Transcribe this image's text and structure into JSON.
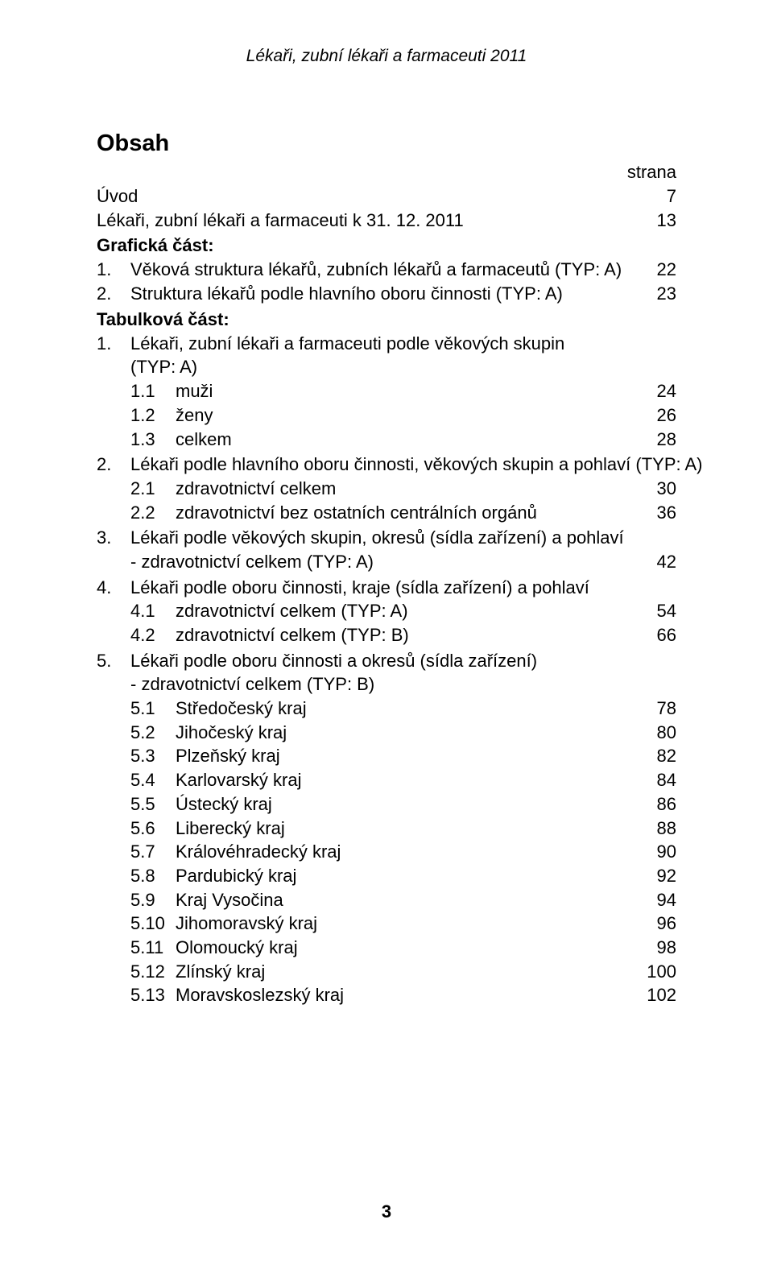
{
  "header": "Lékaři, zubní lékaři a farmaceuti 2011",
  "title": "Obsah",
  "strana": "strana",
  "footerPage": "3",
  "intro": [
    {
      "label": "Úvod",
      "page": "7"
    },
    {
      "label": "Lékaři, zubní lékaři a farmaceuti k 31. 12. 2011",
      "page": "13"
    }
  ],
  "graficka": {
    "heading": "Grafická část:",
    "items": [
      {
        "num": "1.",
        "label": "Věková struktura lékařů, zubních lékařů a farmaceutů (TYP: A)",
        "page": "22"
      },
      {
        "num": "2.",
        "label": "Struktura lékařů podle hlavního oboru činnosti (TYP: A)",
        "page": "23"
      }
    ]
  },
  "tabulkova": {
    "heading": "Tabulková část:",
    "items": [
      {
        "num": "1.",
        "label1": "Lékaři, zubní lékaři a farmaceuti podle věkových skupin",
        "label2": "(TYP: A)",
        "sub": [
          {
            "num": "1.1",
            "label": "muži",
            "page": "24"
          },
          {
            "num": "1.2",
            "label": "ženy",
            "page": "26"
          },
          {
            "num": "1.3",
            "label": "celkem",
            "page": "28"
          }
        ]
      },
      {
        "num": "2.",
        "label1": "Lékaři podle hlavního oboru činnosti, věkových skupin a pohlaví (TYP: A)",
        "sub": [
          {
            "num": "2.1",
            "label": "zdravotnictví celkem",
            "page": "30"
          },
          {
            "num": "2.2",
            "label": "zdravotnictví bez ostatních centrálních orgánů",
            "page": "36"
          }
        ]
      },
      {
        "num": "3.",
        "label1": "Lékaři podle věkových skupin, okresů (sídla zařízení) a pohlaví",
        "lineEnd": {
          "prefix": "- zdravotnictví celkem (TYP: A)",
          "page": "42"
        }
      },
      {
        "num": "4.",
        "label1": "Lékaři podle oboru činnosti, kraje (sídla zařízení) a pohlaví",
        "sub": [
          {
            "num": "4.1",
            "label": "zdravotnictví celkem (TYP: A)",
            "page": "54"
          },
          {
            "num": "4.2",
            "label": "zdravotnictví celkem (TYP: B)",
            "page": "66"
          }
        ]
      },
      {
        "num": "5.",
        "label1": "Lékaři podle oboru činnosti a okresů (sídla zařízení)",
        "label2": "- zdravotnictví celkem (TYP: B)",
        "sub": [
          {
            "num": "5.1",
            "label": "Středočeský kraj",
            "page": "78"
          },
          {
            "num": "5.2",
            "label": "Jihočeský kraj",
            "page": "80"
          },
          {
            "num": "5.3",
            "label": "Plzeňský kraj",
            "page": "82"
          },
          {
            "num": "5.4",
            "label": "Karlovarský kraj",
            "page": "84"
          },
          {
            "num": "5.5",
            "label": "Ústecký kraj",
            "page": "86"
          },
          {
            "num": "5.6",
            "label": "Liberecký kraj",
            "page": "88"
          },
          {
            "num": "5.7",
            "label": "Královéhradecký kraj",
            "page": "90"
          },
          {
            "num": "5.8",
            "label": "Pardubický kraj",
            "page": "92"
          },
          {
            "num": "5.9",
            "label": "Kraj Vysočina",
            "page": "94"
          },
          {
            "num": "5.10",
            "label": "Jihomoravský kraj",
            "page": "96"
          },
          {
            "num": "5.11",
            "label": "Olomoucký kraj",
            "page": "98"
          },
          {
            "num": "5.12",
            "label": "Zlínský kraj",
            "page": "100"
          },
          {
            "num": "5.13",
            "label": "Moravskoslezský kraj",
            "page": "102"
          }
        ]
      }
    ]
  }
}
